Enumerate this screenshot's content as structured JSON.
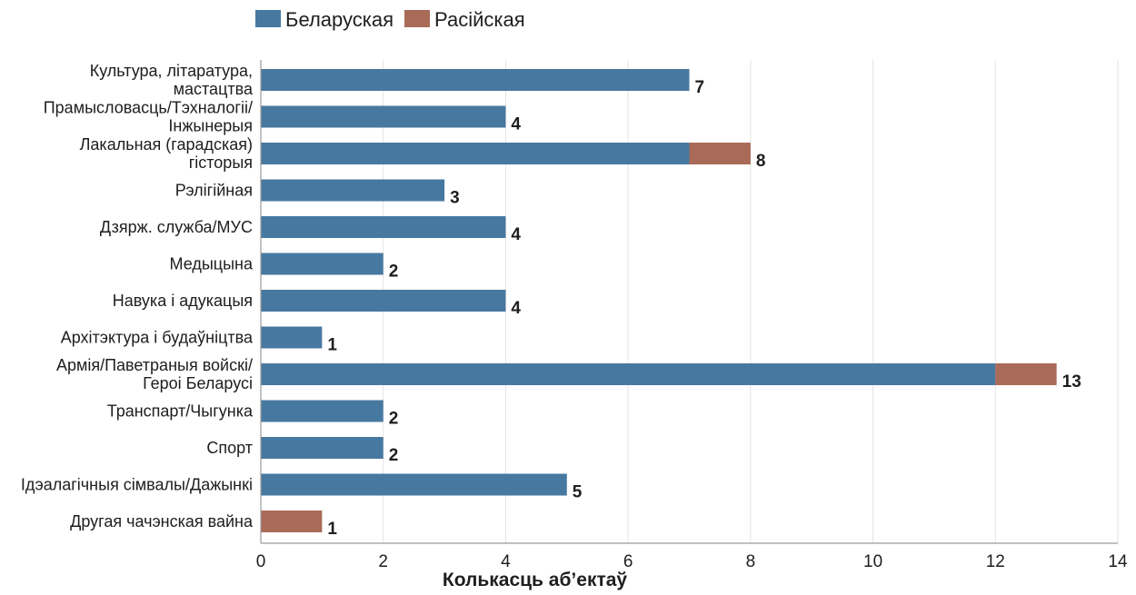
{
  "chart_data": {
    "type": "bar",
    "orientation": "horizontal",
    "stacked": true,
    "title": "",
    "xlabel": "Колькасць аб’ектаў",
    "ylabel": "",
    "xlim": [
      0,
      14
    ],
    "xticks": [
      0,
      2,
      4,
      6,
      8,
      10,
      12,
      14
    ],
    "grid": "vertical",
    "legend_position": "top-left",
    "categories": [
      [
        "Культура, літаратура,",
        "мастацтва"
      ],
      [
        "Прамысловасць/Тэхналогіі/",
        "Інжынерыя"
      ],
      [
        "Лакальная (гарадская)",
        "гісторыя"
      ],
      [
        "Рэлігійная"
      ],
      [
        "Дзярж. служба/МУС"
      ],
      [
        "Медыцына"
      ],
      [
        "Навука і адукацыя"
      ],
      [
        "Архітэктура і будаўніцтва"
      ],
      [
        "Армія/Паветраныя войскі/",
        "Героі Беларусі"
      ],
      [
        "Транспарт/Чыгунка"
      ],
      [
        "Спорт"
      ],
      [
        "Ідэалагічныя сімвалы/Дажынкі"
      ],
      [
        "Другая чачэнская вайна"
      ]
    ],
    "series": [
      {
        "name": "Беларуская",
        "color": "#4778a0",
        "values": [
          7,
          4,
          7,
          3,
          4,
          2,
          4,
          1,
          12,
          2,
          2,
          5,
          0
        ]
      },
      {
        "name": "Расійская",
        "color": "#a96a57",
        "values": [
          0,
          0,
          1,
          0,
          0,
          0,
          0,
          0,
          1,
          0,
          0,
          0,
          1
        ]
      }
    ],
    "totals": [
      "7",
      "4",
      "8",
      "3",
      "4",
      "2",
      "4",
      "1",
      "13",
      "2",
      "2",
      "5",
      "1"
    ]
  }
}
